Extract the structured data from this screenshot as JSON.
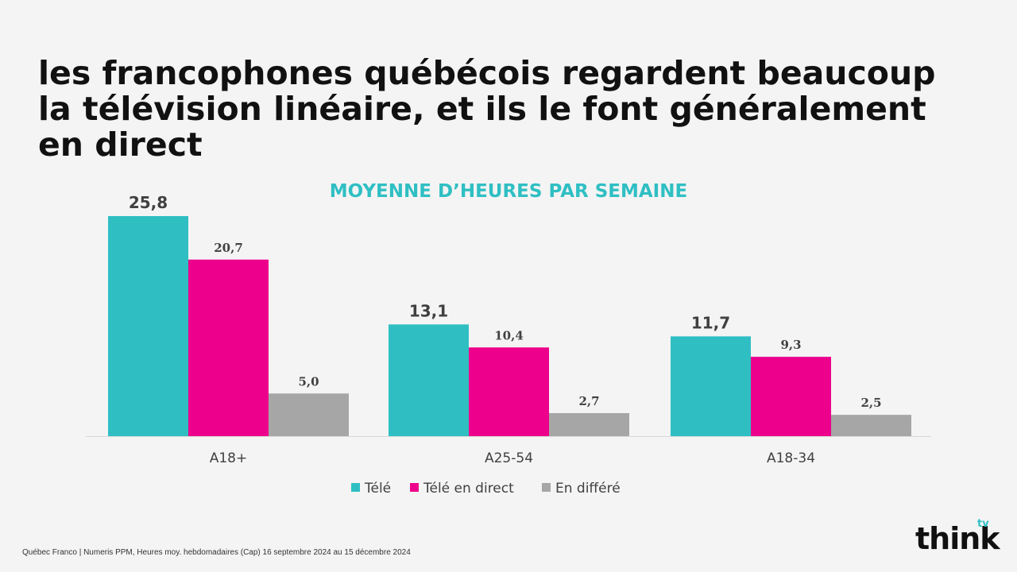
{
  "headline": {
    "line1": "les francophones québécois regardent beaucoup",
    "line2": "la télévision linéaire, et ils le font généralement",
    "line3": "en direct"
  },
  "chart_data": {
    "type": "bar",
    "title": "MOYENNE D’HEURES PAR SEMAINE",
    "categories": [
      "A18+",
      "A25-54",
      "A18-34"
    ],
    "series": [
      {
        "name": "Télé",
        "values": [
          25.8,
          13.1,
          11.7
        ],
        "labels": [
          "25,8",
          "13,1",
          "11,7"
        ],
        "color": "#2fbfc3"
      },
      {
        "name": "Télé en direct",
        "values": [
          20.7,
          10.4,
          9.3
        ],
        "labels": [
          "20,7",
          "10,4",
          "9,3"
        ],
        "color": "#ec008c"
      },
      {
        "name": "En différé",
        "values": [
          5.0,
          2.7,
          2.5
        ],
        "labels": [
          "5,0",
          "2,7",
          "2,5"
        ],
        "color": "#a6a6a6"
      }
    ],
    "ylim": [
      0,
      25.8
    ],
    "grid": false,
    "legend": "bottom"
  },
  "footnote": "Québec Franco | Numeris PPM, Heures moy. hebdomadaires (Cap) 16 septembre 2024 au 15 décembre 2024",
  "logo": {
    "word": "think",
    "sup": "tv"
  }
}
